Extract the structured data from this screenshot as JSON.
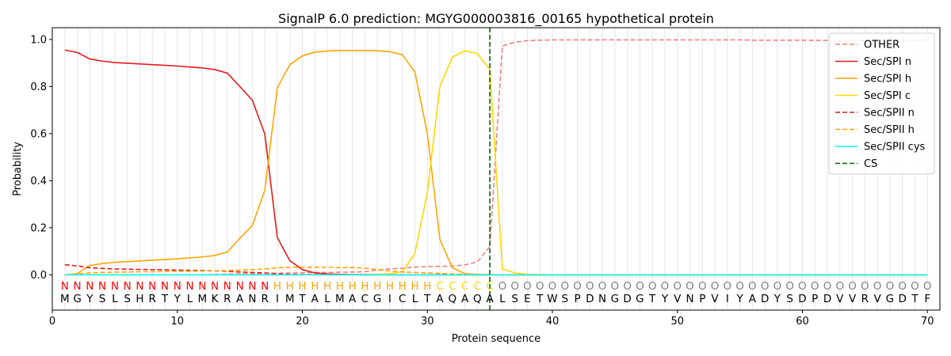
{
  "chart_data": {
    "type": "line",
    "title": "SignalP 6.0 prediction: MGYG000003816_00165 hypothetical protein",
    "xlabel": "Protein sequence",
    "ylabel": "Probability",
    "xlim": [
      0,
      71
    ],
    "ylim": [
      -0.15,
      1.05
    ],
    "xticks": [
      0,
      10,
      20,
      30,
      40,
      50,
      60,
      70
    ],
    "yticks": [
      0.0,
      0.2,
      0.4,
      0.6,
      0.8,
      1.0
    ],
    "grid": "vertical lines at each residue",
    "legend_position": "top-right",
    "sequence": [
      "M",
      "G",
      "Y",
      "S",
      "L",
      "S",
      "H",
      "R",
      "T",
      "Y",
      "L",
      "M",
      "K",
      "R",
      "A",
      "N",
      "R",
      "I",
      "M",
      "T",
      "A",
      "L",
      "M",
      "A",
      "C",
      "G",
      "I",
      "C",
      "L",
      "T",
      "A",
      "Q",
      "A",
      "Q",
      "A",
      "L",
      "S",
      "E",
      "T",
      "W",
      "S",
      "P",
      "D",
      "N",
      "G",
      "D",
      "G",
      "T",
      "Y",
      "V",
      "N",
      "P",
      "V",
      "I",
      "Y",
      "A",
      "D",
      "Y",
      "S",
      "D",
      "P",
      "D",
      "V",
      "V",
      "R",
      "V",
      "G",
      "D",
      "T",
      "F"
    ],
    "labels": [
      "N",
      "N",
      "N",
      "N",
      "N",
      "N",
      "N",
      "N",
      "N",
      "N",
      "N",
      "N",
      "N",
      "N",
      "N",
      "N",
      "N",
      "H",
      "H",
      "H",
      "H",
      "H",
      "H",
      "H",
      "H",
      "H",
      "H",
      "H",
      "H",
      "H",
      "C",
      "C",
      "C",
      "C",
      "C",
      "O",
      "O",
      "O",
      "O",
      "O",
      "O",
      "O",
      "O",
      "O",
      "O",
      "O",
      "O",
      "O",
      "O",
      "O",
      "O",
      "O",
      "O",
      "O",
      "O",
      "O",
      "O",
      "O",
      "O",
      "O",
      "O",
      "O",
      "O",
      "O",
      "O",
      "O",
      "O",
      "O",
      "O",
      "O"
    ],
    "label_colors": {
      "N": "#ff0000",
      "H": "#ffa500",
      "C": "#ffd700",
      "O": "#808080"
    },
    "cs_position": 35,
    "cs_color": "#006400",
    "series": [
      {
        "name": "OTHER",
        "color": "#f08080",
        "dash": "dashed",
        "values": [
          0.0,
          0.0,
          0.0,
          0.0,
          0.0,
          0.0,
          0.0,
          0.0,
          0.0,
          0.0,
          0.0,
          0.0,
          0.002,
          0.003,
          0.004,
          0.005,
          0.006,
          0.007,
          0.008,
          0.009,
          0.01,
          0.01,
          0.011,
          0.012,
          0.013,
          0.02,
          0.025,
          0.028,
          0.033,
          0.035,
          0.036,
          0.037,
          0.042,
          0.055,
          0.12,
          0.972,
          0.988,
          0.995,
          0.997,
          0.998,
          0.998,
          0.998,
          0.998,
          0.998,
          0.998,
          0.998,
          0.998,
          0.998,
          0.998,
          0.998,
          0.998,
          0.998,
          0.998,
          0.998,
          0.998,
          0.997,
          0.997,
          0.997,
          0.997,
          0.997,
          0.996,
          0.996,
          0.996,
          0.996,
          0.996,
          0.996,
          0.996,
          0.996,
          0.996,
          0.996
        ]
      },
      {
        "name": "Sec/SPI n",
        "color": "#e41a1c",
        "dash": "solid",
        "values": [
          0.955,
          0.945,
          0.917,
          0.908,
          0.902,
          0.899,
          0.896,
          0.893,
          0.89,
          0.887,
          0.883,
          0.879,
          0.872,
          0.857,
          0.8,
          0.742,
          0.598,
          0.158,
          0.06,
          0.022,
          0.008,
          0.004,
          0.002,
          0.001,
          0.001,
          0.001,
          0.0,
          0.0,
          0.0,
          0.0,
          0.0,
          0.0,
          0.0,
          0.0,
          0.0,
          0.0,
          0.0,
          0.0,
          0.0,
          0.0,
          0.0,
          0.0,
          0.0,
          0.0,
          0.0,
          0.0,
          0.0,
          0.0,
          0.0,
          0.0,
          0.0,
          0.0,
          0.0,
          0.0,
          0.0,
          0.0,
          0.0,
          0.0,
          0.0,
          0.0,
          0.0,
          0.0,
          0.0,
          0.0,
          0.0,
          0.0,
          0.0,
          0.0,
          0.0,
          0.0
        ]
      },
      {
        "name": "Sec/SPI h",
        "color": "#ffa500",
        "dash": "solid",
        "values": [
          0.0,
          0.005,
          0.04,
          0.048,
          0.053,
          0.056,
          0.059,
          0.062,
          0.065,
          0.068,
          0.072,
          0.076,
          0.082,
          0.097,
          0.155,
          0.21,
          0.36,
          0.795,
          0.893,
          0.93,
          0.946,
          0.951,
          0.953,
          0.953,
          0.953,
          0.952,
          0.948,
          0.935,
          0.862,
          0.6,
          0.15,
          0.03,
          0.005,
          0.002,
          0.001,
          0.0,
          0.0,
          0.0,
          0.0,
          0.0,
          0.0,
          0.0,
          0.0,
          0.0,
          0.0,
          0.0,
          0.0,
          0.0,
          0.0,
          0.0,
          0.0,
          0.0,
          0.0,
          0.0,
          0.0,
          0.0,
          0.0,
          0.0,
          0.0,
          0.0,
          0.0,
          0.0,
          0.0,
          0.0,
          0.0,
          0.0,
          0.0,
          0.0,
          0.0,
          0.0
        ]
      },
      {
        "name": "Sec/SPI c",
        "color": "#ffd700",
        "dash": "solid",
        "values": [
          0.0,
          0.0,
          0.0,
          0.0,
          0.0,
          0.0,
          0.0,
          0.0,
          0.0,
          0.0,
          0.0,
          0.0,
          0.0,
          0.0,
          0.0,
          0.0,
          0.0,
          0.0,
          0.0,
          0.0,
          0.0,
          0.0,
          0.0,
          0.001,
          0.001,
          0.002,
          0.004,
          0.013,
          0.09,
          0.35,
          0.8,
          0.925,
          0.952,
          0.94,
          0.872,
          0.025,
          0.008,
          0.002,
          0.001,
          0.0,
          0.0,
          0.0,
          0.0,
          0.0,
          0.0,
          0.0,
          0.0,
          0.0,
          0.0,
          0.0,
          0.0,
          0.0,
          0.0,
          0.0,
          0.0,
          0.0,
          0.0,
          0.0,
          0.0,
          0.0,
          0.0,
          0.0,
          0.0,
          0.0,
          0.0,
          0.0,
          0.0,
          0.0,
          0.0,
          0.0
        ]
      },
      {
        "name": "Sec/SPII n",
        "color": "#e41a1c",
        "dash": "dashed",
        "values": [
          0.043,
          0.038,
          0.03,
          0.027,
          0.025,
          0.024,
          0.023,
          0.022,
          0.021,
          0.02,
          0.019,
          0.018,
          0.017,
          0.015,
          0.012,
          0.01,
          0.008,
          0.004,
          0.002,
          0.001,
          0.001,
          0.0,
          0.0,
          0.0,
          0.0,
          0.0,
          0.0,
          0.0,
          0.0,
          0.0,
          0.0,
          0.0,
          0.0,
          0.0,
          0.0,
          0.0,
          0.0,
          0.0,
          0.0,
          0.0,
          0.0,
          0.0,
          0.0,
          0.0,
          0.0,
          0.0,
          0.0,
          0.0,
          0.0,
          0.0,
          0.0,
          0.0,
          0.0,
          0.0,
          0.0,
          0.0,
          0.0,
          0.0,
          0.0,
          0.0,
          0.0,
          0.0,
          0.0,
          0.0,
          0.0,
          0.0,
          0.0,
          0.0,
          0.0,
          0.0
        ]
      },
      {
        "name": "Sec/SPII h",
        "color": "#ffa500",
        "dash": "dashed",
        "values": [
          0.0,
          0.003,
          0.008,
          0.01,
          0.011,
          0.012,
          0.013,
          0.013,
          0.014,
          0.015,
          0.015,
          0.016,
          0.017,
          0.018,
          0.02,
          0.022,
          0.025,
          0.03,
          0.032,
          0.032,
          0.032,
          0.032,
          0.031,
          0.031,
          0.028,
          0.022,
          0.016,
          0.012,
          0.01,
          0.008,
          0.006,
          0.004,
          0.002,
          0.001,
          0.001,
          0.0,
          0.0,
          0.0,
          0.0,
          0.0,
          0.0,
          0.0,
          0.0,
          0.0,
          0.0,
          0.0,
          0.0,
          0.0,
          0.0,
          0.0,
          0.0,
          0.0,
          0.0,
          0.0,
          0.0,
          0.0,
          0.0,
          0.0,
          0.0,
          0.0,
          0.0,
          0.0,
          0.0,
          0.0,
          0.0,
          0.0,
          0.0,
          0.0,
          0.0,
          0.0
        ]
      },
      {
        "name": "Sec/SPII cys",
        "color": "#00ffff",
        "dash": "solid",
        "values": [
          0.0,
          0.0,
          0.0,
          0.0,
          0.0,
          0.0,
          0.0,
          0.0,
          0.0,
          0.0,
          0.0,
          0.0,
          0.0,
          0.0,
          0.0,
          0.0,
          0.0,
          0.0,
          0.0,
          0.0,
          0.0,
          0.0,
          0.0,
          0.0,
          0.0,
          0.0,
          0.0,
          0.0,
          0.0,
          0.0,
          0.0,
          0.0,
          0.0,
          0.0,
          0.0,
          0.0,
          0.0,
          0.0,
          0.0,
          0.0,
          0.0,
          0.0,
          0.0,
          0.0,
          0.0,
          0.0,
          0.0,
          0.0,
          0.0,
          0.0,
          0.0,
          0.0,
          0.0,
          0.0,
          0.0,
          0.0,
          0.0,
          0.0,
          0.0,
          0.0,
          0.0,
          0.0,
          0.0,
          0.0,
          0.0,
          0.0,
          0.0,
          0.0,
          0.0,
          0.0
        ]
      }
    ],
    "legend": [
      {
        "name": "OTHER",
        "color": "#f08080",
        "dash": "dashed"
      },
      {
        "name": "Sec/SPI n",
        "color": "#e41a1c",
        "dash": "solid"
      },
      {
        "name": "Sec/SPI h",
        "color": "#ffa500",
        "dash": "solid"
      },
      {
        "name": "Sec/SPI c",
        "color": "#ffd700",
        "dash": "solid"
      },
      {
        "name": "Sec/SPII n",
        "color": "#e41a1c",
        "dash": "dashed"
      },
      {
        "name": "Sec/SPII h",
        "color": "#ffa500",
        "dash": "dashed"
      },
      {
        "name": "Sec/SPII cys",
        "color": "#00ffff",
        "dash": "solid"
      },
      {
        "name": "CS",
        "color": "#006400",
        "dash": "dashed"
      }
    ]
  }
}
